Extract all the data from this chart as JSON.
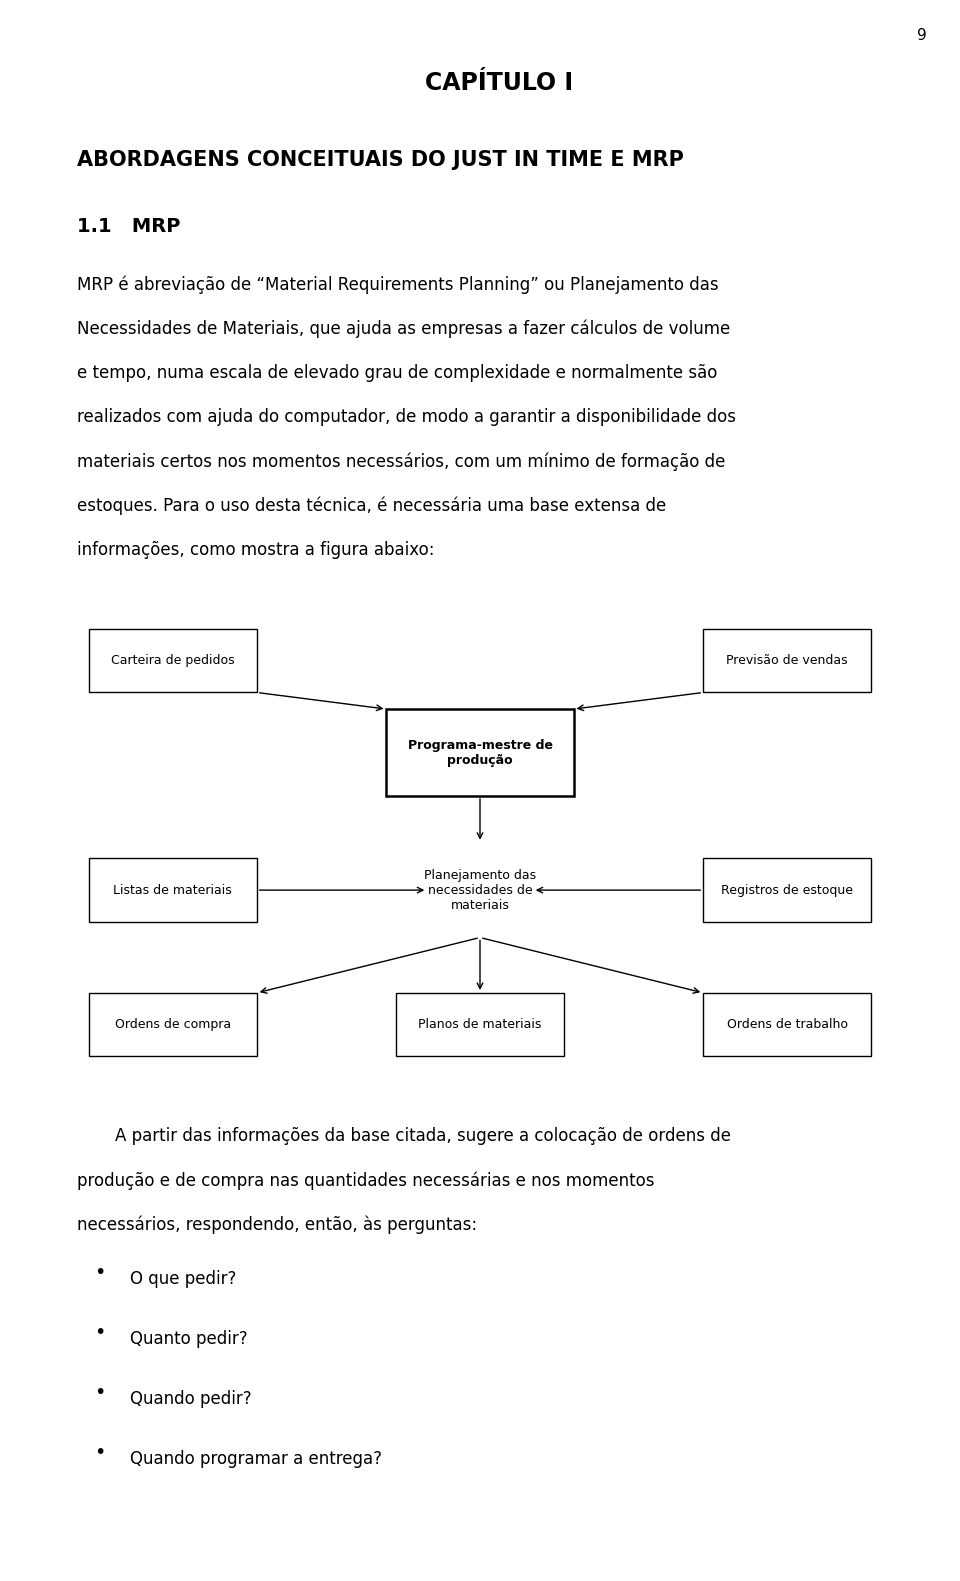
{
  "page_number": "9",
  "chapter_title": "CAPÍTULO I",
  "section_title": "ABORDAGENS CONCEITUAIS DO JUST IN TIME E MRP",
  "subsection": "1.1   MRP",
  "para1_lines": [
    "MRP é abreviação de “Material Requirements Planning” ou Planejamento das",
    "Necessidades de Materiais, que ajuda as empresas a fazer cálculos de volume",
    "e tempo, numa escala de elevado grau de complexidade e normalmente são",
    "realizados com ajuda do computador, de modo a garantir a disponibilidade dos",
    "materiais certos nos momentos necessários, com um mínimo de formação de",
    "estoques. Para o uso desta técnica, é necessária uma base extensa de",
    "informações, como mostra a figura abaixo:"
  ],
  "para2_lines": [
    "A partir das informações da base citada, sugere a colocação de ordens de",
    "produção e de compra nas quantidades necessárias e nos momentos",
    "necessários, respondendo, então, às perguntas:"
  ],
  "bullets": [
    "O que pedir?",
    "Quanto pedir?",
    "Quando pedir?",
    "Quando programar a entrega?"
  ],
  "nodes": {
    "carteira": "Carteira de pedidos",
    "previsao": "Previsão de vendas",
    "programa": "Programa-mestre de\nprodução",
    "planejamento": "Planejamento das\nnecessidades de\nmateriais",
    "listas": "Listas de materiais",
    "registros": "Registros de estoque",
    "ordens_compra": "Ordens de compra",
    "planos": "Planos de materiais",
    "ordens_trabalho": "Ordens de trabalho"
  },
  "bg_color": "#ffffff",
  "text_color": "#000000",
  "fs_pagenum": 11,
  "fs_chapter": 17,
  "fs_section": 15,
  "fs_subsection": 14,
  "fs_body": 12,
  "fs_diagram": 9,
  "ml": 0.08,
  "mr": 0.96,
  "lh_body": 0.028,
  "lh_bullet": 0.038
}
